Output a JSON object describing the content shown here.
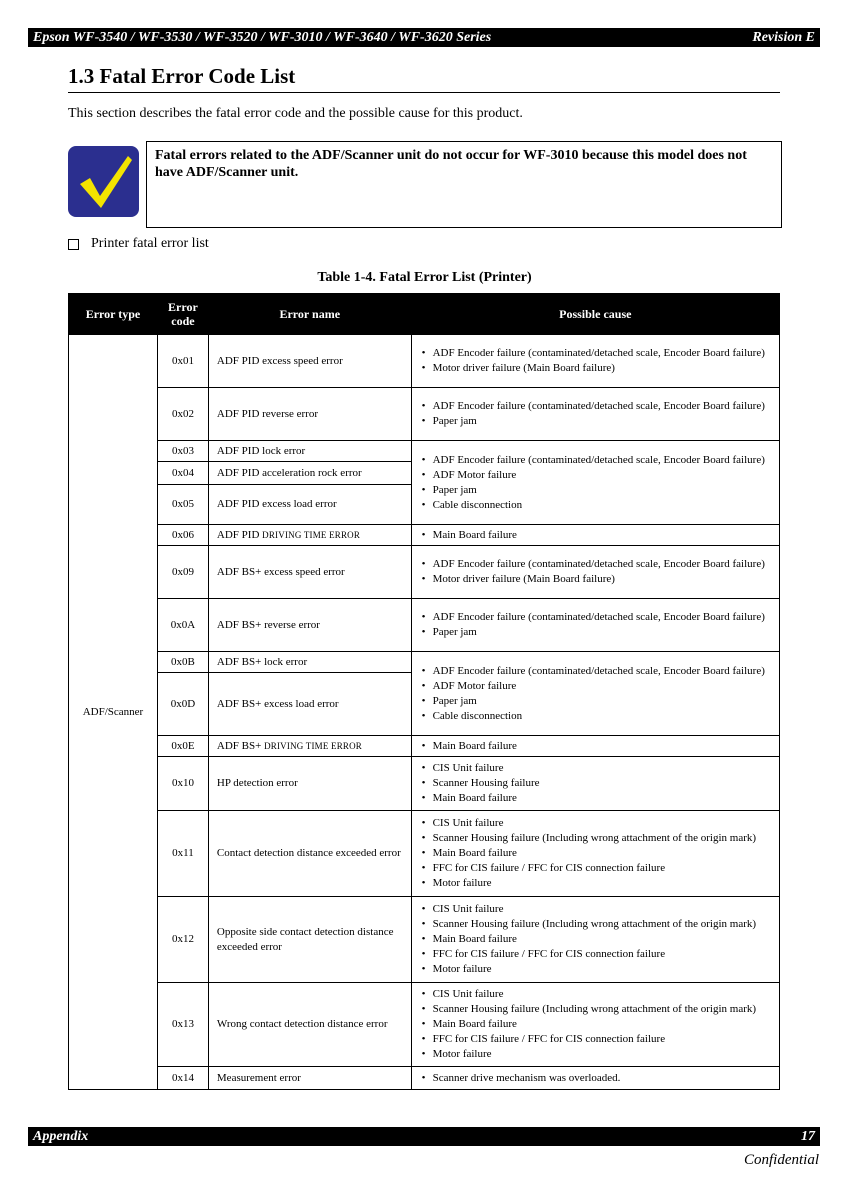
{
  "header": {
    "left": "Epson WF-3540 / WF-3530 / WF-3520 / WF-3010 / WF-3640 / WF-3620 Series",
    "right": "Revision E"
  },
  "title": "1.3  Fatal Error Code List",
  "intro": "This section describes the fatal error code and the possible cause for this product.",
  "note": {
    "icon": "checkmark-icon",
    "text": "Fatal errors related to the ADF/Scanner unit do not occur for WF-3010 because this model does not have ADF/Scanner unit."
  },
  "subheading": "Printer fatal error list",
  "table": {
    "caption": "Table 1-4.  Fatal Error List (Printer)",
    "headers": [
      "Error type",
      "Error code",
      "Error name",
      "Possible cause"
    ],
    "error_type": "ADF/Scanner",
    "rows": [
      {
        "code": "0x01",
        "name": "ADF PID excess speed error",
        "h": 53,
        "causes": [
          "ADF Encoder failure (contaminated/detached scale, Encoder Board failure)",
          "Motor driver failure (Main Board failure)"
        ],
        "span": 1
      },
      {
        "code": "0x02",
        "name": "ADF PID reverse error",
        "h": 53,
        "causes": [
          "ADF Encoder failure (contaminated/detached scale, Encoder Board failure)",
          "Paper jam"
        ],
        "span": 1
      },
      {
        "code": "0x03",
        "name": "ADF PID lock error",
        "h": 21,
        "causes": [
          "ADF Encoder failure (contaminated/detached scale, Encoder Board failure)",
          "ADF Motor failure",
          "Paper jam",
          "Cable disconnection"
        ],
        "span": 3
      },
      {
        "code": "0x04",
        "name": "ADF PID acceleration rock error",
        "h": 23
      },
      {
        "code": "0x05",
        "name": "ADF PID excess load error",
        "h": 40
      },
      {
        "code": "0x06",
        "name": "ADF PID ",
        "name_sc": "DRIVING TIME ERROR",
        "h": 21,
        "causes": [
          "Main Board failure"
        ],
        "span": 1
      },
      {
        "code": "0x09",
        "name": "ADF BS+  excess speed error",
        "h": 53,
        "causes": [
          "ADF Encoder failure (contaminated/detached scale, Encoder Board failure)",
          "Motor driver failure (Main Board failure)"
        ],
        "span": 1
      },
      {
        "code": "0x0A",
        "name": "ADF BS+ reverse error",
        "h": 53,
        "causes": [
          "ADF Encoder failure (contaminated/detached scale, Encoder Board failure)",
          "Paper jam"
        ],
        "span": 1
      },
      {
        "code": "0x0B",
        "name": "ADF BS+ lock error",
        "h": 21,
        "causes": [
          "ADF Encoder failure (contaminated/detached scale, Encoder Board failure)",
          "ADF Motor failure",
          "Paper jam",
          "Cable disconnection"
        ],
        "span": 2
      },
      {
        "code": "0x0D",
        "name": "ADF BS+  excess load error",
        "h": 63
      },
      {
        "code": "0x0E",
        "name": "ADF BS+  ",
        "name_sc": "DRIVING TIME ERROR",
        "h": 21,
        "causes": [
          "Main Board failure"
        ],
        "span": 1
      },
      {
        "code": "0x10",
        "name": "HP detection error",
        "h": 54,
        "causes": [
          "CIS Unit failure",
          "Scanner Housing failure",
          "Main Board failure"
        ],
        "span": 1
      },
      {
        "code": "0x11",
        "name": "Contact detection distance exceeded error",
        "h": 86,
        "causes": [
          "CIS Unit failure",
          "Scanner Housing failure (Including wrong attachment of the origin mark)",
          "Main Board failure",
          "FFC for CIS failure / FFC for CIS connection failure",
          "Motor failure"
        ],
        "span": 1
      },
      {
        "code": "0x12",
        "name": "Opposite side contact detection distance exceeded error",
        "h": 86,
        "causes": [
          "CIS Unit failure",
          "Scanner Housing failure (Including wrong attachment of the origin mark)",
          "Main Board failure",
          "FFC for CIS failure / FFC for CIS connection failure",
          "Motor failure"
        ],
        "span": 1
      },
      {
        "code": "0x13",
        "name": "Wrong contact detection distance error",
        "h": 84,
        "causes": [
          "CIS Unit failure",
          "Scanner Housing failure (Including wrong attachment of the origin mark)",
          "Main Board failure",
          "FFC for CIS failure / FFC for CIS connection failure",
          "Motor failure"
        ],
        "span": 1
      },
      {
        "code": "0x14",
        "name": "Measurement error",
        "h": 23,
        "causes": [
          "Scanner drive mechanism was overloaded."
        ],
        "span": 1
      }
    ]
  },
  "footer": {
    "left": "Appendix",
    "right": "17"
  },
  "confidential": "Confidential"
}
